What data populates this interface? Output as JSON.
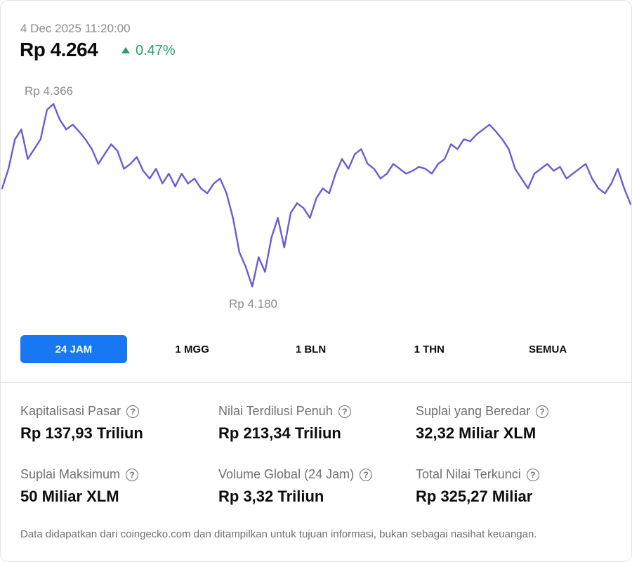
{
  "header": {
    "timestamp": "4 Dec 2025 11:20:00",
    "price": "Rp 4.264",
    "change": "0.47%",
    "change_color": "#26a269",
    "change_icon": "triangle-up-icon"
  },
  "chart_data": {
    "type": "line",
    "title": "",
    "line_color": "#6a5bd8",
    "high_label": "Rp 4.366",
    "low_label": "Rp 4.180",
    "ylim": [
      4180,
      4366
    ],
    "values": [
      4280,
      4300,
      4330,
      4340,
      4310,
      4320,
      4330,
      4360,
      4366,
      4350,
      4340,
      4345,
      4338,
      4330,
      4320,
      4305,
      4315,
      4325,
      4318,
      4300,
      4305,
      4312,
      4298,
      4290,
      4300,
      4285,
      4295,
      4282,
      4295,
      4285,
      4290,
      4280,
      4275,
      4285,
      4290,
      4275,
      4250,
      4215,
      4200,
      4180,
      4210,
      4195,
      4230,
      4250,
      4220,
      4255,
      4265,
      4260,
      4250,
      4270,
      4280,
      4275,
      4295,
      4310,
      4300,
      4315,
      4320,
      4305,
      4300,
      4290,
      4295,
      4305,
      4300,
      4295,
      4298,
      4302,
      4300,
      4295,
      4305,
      4310,
      4325,
      4320,
      4330,
      4328,
      4335,
      4340,
      4345,
      4338,
      4330,
      4320,
      4300,
      4290,
      4280,
      4295,
      4300,
      4305,
      4298,
      4302,
      4290,
      4295,
      4300,
      4305,
      4290,
      4280,
      4275,
      4285,
      4300,
      4280,
      4264
    ]
  },
  "tabs": [
    {
      "label": "24 JAM",
      "active": true
    },
    {
      "label": "1 MGG",
      "active": false
    },
    {
      "label": "1 BLN",
      "active": false
    },
    {
      "label": "1 THN",
      "active": false
    },
    {
      "label": "SEMUA",
      "active": false
    }
  ],
  "stats": [
    {
      "label": "Kapitalisasi Pasar",
      "value": "Rp 137,93 Triliun"
    },
    {
      "label": "Nilai Terdilusi Penuh",
      "value": "Rp 213,34 Triliun"
    },
    {
      "label": "Suplai yang Beredar",
      "value": "32,32 Miliar XLM"
    },
    {
      "label": "Suplai Maksimum",
      "value": "50 Miliar XLM"
    },
    {
      "label": "Volume Global (24 Jam)",
      "value": "Rp 3,32 Triliun"
    },
    {
      "label": "Total Nilai Terkunci",
      "value": "Rp 325,27 Miliar"
    }
  ],
  "help_glyph": "?",
  "footer": "Data didapatkan dari coingecko.com dan ditampilkan untuk tujuan informasi, bukan sebagai nasihat keuangan."
}
